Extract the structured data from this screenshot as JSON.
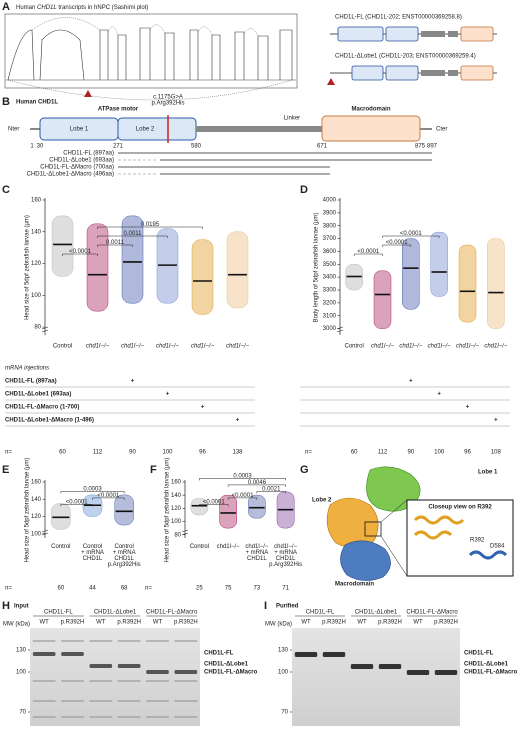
{
  "panel_a": {
    "letter": "A",
    "title_pre": "Human ",
    "title_gene": "CHD1L",
    "title_post": " transcripts in hNPC (Sashimi plot)",
    "transcripts": [
      "CHD1L-FL (CHD1L-202; ENST00000369258.8)",
      "CHD1L-ΔLobe1 (CHD1L-203; ENST00000369259.4)"
    ]
  },
  "panel_b": {
    "letter": "B",
    "title": "Human CHD1L",
    "atpase": "ATPase motor",
    "lobe1": "Lobe 1",
    "lobe2": "Lobe 2",
    "linker": "Linker",
    "macro": "Macrodomain",
    "nter": "Nter",
    "cter": "Cter",
    "variant": [
      "c.1175G>A",
      "p.Arg392His"
    ],
    "positions": [
      "1",
      "30",
      "271",
      "580",
      "671",
      "875",
      "897"
    ],
    "constructs": [
      "CHD1L-FL (897aa)",
      "CHD1L-ΔLobe1 (693aa)",
      "CHD1L-FL-ΔMacro (700aa)",
      "CHD1L-ΔLobe1-ΔMacro (496aa)"
    ]
  },
  "chart_data": [
    {
      "type": "dot",
      "letter": "C",
      "ylabel": "Head size of 5dpf zebrafish larvae (µm)",
      "categories": [
        "Control",
        "chd1l−/−",
        "chd1l−/−",
        "chd1l−/−",
        "chd1l−/−",
        "chd1l−/−"
      ],
      "colors": [
        "#b8b8b8",
        "#b0306a",
        "#4f63b0",
        "#7d93d0",
        "#e0a030",
        "#ebc08a"
      ],
      "values": [
        132,
        113,
        121,
        119,
        109,
        113
      ],
      "range_low": [
        112,
        90,
        95,
        95,
        88,
        92
      ],
      "range_high": [
        150,
        145,
        150,
        142,
        135,
        140
      ],
      "ylim": [
        75,
        160
      ],
      "yticks": [
        80,
        100,
        120,
        140,
        160
      ],
      "brackets": [
        {
          "from": 0,
          "to": 1,
          "label": "<0.0001"
        },
        {
          "from": 1,
          "to": 2,
          "label": "0.0011"
        },
        {
          "from": 1,
          "to": 3,
          "label": "0.0011"
        },
        {
          "from": 1,
          "to": 4,
          "label": "0.0195"
        }
      ],
      "n_label": "n=",
      "n": [
        "60",
        "112",
        "90",
        "100",
        "96",
        "138"
      ]
    },
    {
      "type": "dot",
      "letter": "D",
      "ylabel": "Body length of 5dpf zebrafish larvae (µm)",
      "categories": [
        "Control",
        "chd1l−/−",
        "chd1l−/−",
        "chd1l−/−",
        "chd1l−/−",
        "chd1l−/−"
      ],
      "colors": [
        "#b8b8b8",
        "#b0306a",
        "#4f63b0",
        "#7d93d0",
        "#e0a030",
        "#ebc08a"
      ],
      "values": [
        3405,
        3265,
        3470,
        3440,
        3290,
        3280
      ],
      "range_low": [
        3300,
        3000,
        3150,
        3250,
        3050,
        3000
      ],
      "range_high": [
        3500,
        3450,
        3700,
        3750,
        3650,
        3700
      ],
      "ylim": [
        2950,
        4000
      ],
      "yticks": [
        3000,
        3100,
        3200,
        3300,
        3400,
        3500,
        3600,
        3700,
        3800,
        3900,
        4000
      ],
      "brackets": [
        {
          "from": 0,
          "to": 1,
          "label": "<0.0001"
        },
        {
          "from": 1,
          "to": 2,
          "label": "<0.0001"
        },
        {
          "from": 1,
          "to": 3,
          "label": "<0.0001"
        }
      ],
      "n_label": "n=",
      "n": [
        "60",
        "112",
        "90",
        "100",
        "96",
        "108"
      ]
    },
    {
      "type": "dot",
      "letter": "E",
      "ylabel": "Head size of 5dpf zebrafish larvae (µm)",
      "categories": [
        [
          "Control"
        ],
        [
          "Control",
          "+ mRNA",
          "CHD1L"
        ],
        [
          "Control",
          "+ mRNA",
          "CHD1L",
          "p.Arg392His"
        ]
      ],
      "colors": [
        "#b8b8b8",
        "#6f9ad8",
        "#5a6db0"
      ],
      "values": [
        119,
        133,
        126
      ],
      "range_low": [
        105,
        120,
        110
      ],
      "range_high": [
        135,
        145,
        145
      ],
      "ylim": [
        95,
        160
      ],
      "yticks": [
        100,
        120,
        140,
        160
      ],
      "brackets": [
        {
          "from": 0,
          "to": 1,
          "label": "<0.0001"
        },
        {
          "from": 1,
          "to": 2,
          "label": "<0.0001"
        },
        {
          "from": 0,
          "to": 2,
          "label": "0.0003"
        }
      ],
      "n_label": "n=",
      "n": [
        "60",
        "44",
        "68"
      ]
    },
    {
      "type": "dot",
      "letter": "F",
      "ylabel": "Head size of 5dpf zebrafish larvae (µm)",
      "categories": [
        [
          "Control"
        ],
        [
          "chd1l−/−"
        ],
        [
          "chd1l−/−",
          "+ mRNA",
          "CHD1L"
        ],
        [
          "chd1l−/−",
          "+ mRNA",
          "CHD1L",
          "p.Arg392His"
        ]
      ],
      "colors": [
        "#b8b8b8",
        "#b0306a",
        "#5a6db0",
        "#8a4fa0"
      ],
      "values": [
        124,
        113,
        121,
        118
      ],
      "range_low": [
        110,
        90,
        105,
        90
      ],
      "range_high": [
        135,
        140,
        140,
        145
      ],
      "ylim": [
        75,
        160
      ],
      "yticks": [
        80,
        100,
        120,
        140,
        160
      ],
      "brackets": [
        {
          "from": 0,
          "to": 1,
          "label": "<0.0001"
        },
        {
          "from": 1,
          "to": 2,
          "label": "<0.0001"
        },
        {
          "from": 2,
          "to": 3,
          "label": "0.0021"
        },
        {
          "from": 1,
          "to": 3,
          "label": "0.0046"
        },
        {
          "from": 0,
          "to": 3,
          "label": "0.0003"
        }
      ],
      "n_label": "n=",
      "n": [
        "25",
        "75",
        "73",
        "71"
      ]
    }
  ],
  "injection_table": {
    "title": "mRNA injections",
    "symbol": "+",
    "rows": [
      {
        "label": "CHD1L-FL (897aa)",
        "column": 2
      },
      {
        "label": "CHD1L-ΔLobe1 (693aa)",
        "column": 3
      },
      {
        "label": "CHD1L-FL-ΔMacro (1-700)",
        "column": 4
      },
      {
        "label": "CHD1L-ΔLobe1-ΔMacro (1-496)",
        "column": 5
      }
    ]
  },
  "panel_g": {
    "letter": "G",
    "lobe1": "Lobe 1",
    "lobe2": "Lobe 2",
    "macro": "Macrodomain",
    "closeup": "Closeup view on R392",
    "residues": [
      "R392",
      "D584"
    ]
  },
  "gels": [
    {
      "letter": "H",
      "title": "Input",
      "mw_label": "MW (kDa)",
      "mw": [
        "130",
        "100",
        "70"
      ],
      "groups": [
        "CHD1L-FL",
        "CHD1L-ΔLobe1",
        "CHD1L-FL-ΔMacro"
      ],
      "lanes": [
        "WT",
        "p.R392H"
      ],
      "bands": [
        "CHD1L-FL",
        "CHD1L-ΔLobe1",
        "CHD1L-FL-ΔMacro"
      ]
    },
    {
      "letter": "I",
      "title": "Purified",
      "mw_label": "MW (kDa)",
      "mw": [
        "130",
        "100",
        "70"
      ],
      "groups": [
        "CHD1L-FL",
        "CHD1L-ΔLobe1",
        "CHD1L-FL-ΔMacro"
      ],
      "lanes": [
        "WT",
        "p.R392H"
      ],
      "bands": [
        "CHD1L-FL",
        "CHD1L-ΔLobe1",
        "CHD1L-FL-ΔMacro"
      ]
    }
  ]
}
